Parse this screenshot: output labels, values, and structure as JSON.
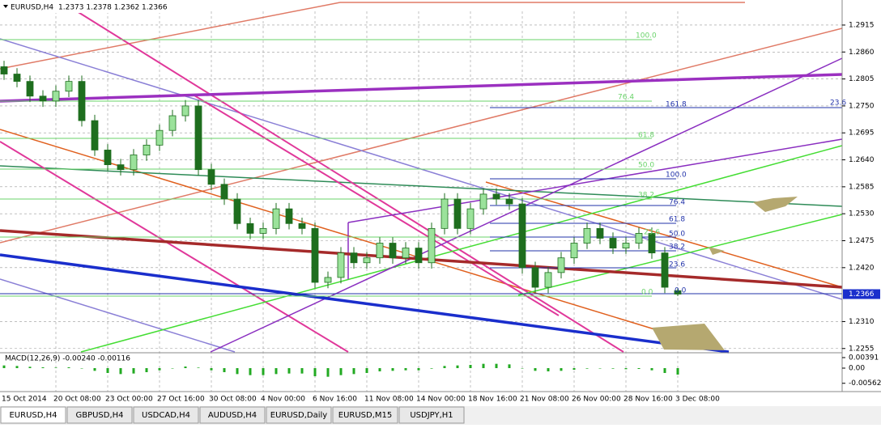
{
  "header": {
    "title": "EURUSD,H4",
    "quote": "1.2373 1.2378 1.2362 1.2366"
  },
  "chart_data": {
    "type": "candlestick",
    "x": [
      "15 Oct 2014",
      null,
      null,
      null,
      "20 Oct 08:00",
      null,
      null,
      null,
      "23 Oct 00:00",
      null,
      null,
      null,
      "27 Oct 16:00",
      null,
      null,
      null,
      "30 Oct 08:00",
      null,
      null,
      null,
      "4 Nov 00:00",
      null,
      null,
      null,
      "6 Nov 16:00",
      null,
      null,
      null,
      "11 Nov 08:00",
      null,
      null,
      null,
      "14 Nov 00:00",
      null,
      null,
      null,
      "18 Nov 16:00",
      null,
      null,
      null,
      "21 Nov 08:00",
      null,
      null,
      null,
      "26 Nov 00:00",
      null,
      null,
      null,
      "28 Nov 16:00",
      null,
      null,
      null,
      "3 Dec 08:00"
    ],
    "open": [
      1.283,
      1.2815,
      1.28,
      1.277,
      1.276,
      1.278,
      1.28,
      1.272,
      1.266,
      1.263,
      1.262,
      1.265,
      1.267,
      1.27,
      1.273,
      1.275,
      1.262,
      1.259,
      1.256,
      1.251,
      1.249,
      1.25,
      1.254,
      1.251,
      1.25,
      1.239,
      1.24,
      1.245,
      1.243,
      1.244,
      1.247,
      1.244,
      1.246,
      1.243,
      1.25,
      1.256,
      1.25,
      1.254,
      1.257,
      1.256,
      1.255,
      1.242,
      1.238,
      1.241,
      1.244,
      1.247,
      1.25,
      1.248,
      1.246,
      1.247,
      1.249,
      1.245,
      1.2373
    ],
    "high": [
      1.2842,
      1.2827,
      1.2812,
      1.2782,
      1.2792,
      1.2812,
      1.2812,
      1.2732,
      1.2672,
      1.2642,
      1.2662,
      1.2682,
      1.2712,
      1.2742,
      1.2762,
      1.2762,
      1.2632,
      1.2602,
      1.2572,
      1.2522,
      1.2512,
      1.2552,
      1.2552,
      1.2522,
      1.2512,
      1.2412,
      1.2462,
      1.2462,
      1.2452,
      1.2482,
      1.2482,
      1.2472,
      1.2472,
      1.2512,
      1.2572,
      1.2572,
      1.2552,
      1.2582,
      1.2582,
      1.2572,
      1.2562,
      1.2432,
      1.2422,
      1.2452,
      1.2482,
      1.2512,
      1.2512,
      1.2492,
      1.2482,
      1.2502,
      1.2502,
      1.2462,
      1.2378
    ],
    "low": [
      1.2803,
      1.2788,
      1.2758,
      1.2748,
      1.2748,
      1.2768,
      1.2708,
      1.2648,
      1.2618,
      1.2608,
      1.2608,
      1.2638,
      1.2658,
      1.2688,
      1.2718,
      1.2608,
      1.2578,
      1.2548,
      1.2498,
      1.2478,
      1.2478,
      1.2488,
      1.2498,
      1.2488,
      1.2378,
      1.2378,
      1.2388,
      1.2418,
      1.2418,
      1.2428,
      1.2428,
      1.2428,
      1.2418,
      1.2418,
      1.2488,
      1.2488,
      1.2488,
      1.2528,
      1.2548,
      1.2538,
      1.2408,
      1.2368,
      1.2368,
      1.2398,
      1.2428,
      1.2458,
      1.2468,
      1.2448,
      1.2448,
      1.2458,
      1.2438,
      1.2368,
      1.2362
    ],
    "close": [
      1.2815,
      1.28,
      1.277,
      1.276,
      1.278,
      1.28,
      1.272,
      1.266,
      1.263,
      1.262,
      1.265,
      1.267,
      1.27,
      1.273,
      1.275,
      1.262,
      1.259,
      1.256,
      1.251,
      1.249,
      1.25,
      1.254,
      1.251,
      1.25,
      1.239,
      1.24,
      1.245,
      1.243,
      1.244,
      1.247,
      1.244,
      1.246,
      1.243,
      1.25,
      1.256,
      1.25,
      1.254,
      1.257,
      1.256,
      1.255,
      1.242,
      1.238,
      1.241,
      1.244,
      1.247,
      1.25,
      1.248,
      1.246,
      1.247,
      1.249,
      1.245,
      1.238,
      1.2366
    ],
    "up_color": "#9be29b",
    "down_color": "#1e6e1e",
    "wick_color": "#1e6e1e",
    "ylim": [
      1.2248,
      1.2943
    ],
    "yticks": [
      1.2915,
      {
        "value": 1.286,
        "label": "1.2860"
      },
      1.2805,
      {
        "value": 1.275,
        "label": "1.2750"
      },
      1.2695,
      {
        "value": 1.264,
        "label": "1.2640"
      },
      1.2585,
      {
        "value": 1.253,
        "label": "1.2530"
      },
      1.2475,
      {
        "value": 1.242,
        "label": "1.2420"
      },
      {
        "value": 1.231,
        "label": "1.2310"
      },
      1.2255
    ],
    "current_price": 1.2366,
    "grid": true,
    "fib_green": [
      "100.0",
      "76.4",
      "61.8",
      "50.0",
      "38.2",
      "23.6",
      "0.0"
    ],
    "fib_blue": [
      "161.8",
      "100.0",
      "76.4",
      "61.8",
      "50.0",
      "38.2",
      "23.6",
      "0.0"
    ],
    "fib_right": "23.6",
    "macd": {
      "title": "MACD(12,26,9) -0.00240 -0.00116",
      "color": "#22aa22",
      "values": [
        0.001,
        0.0008,
        0.0005,
        0.0003,
        0.0002,
        0.0003,
        0.0,
        -0.001,
        -0.0018,
        -0.0022,
        -0.002,
        -0.0015,
        -0.0008,
        0.0,
        0.0006,
        0.0002,
        -0.0008,
        -0.0015,
        -0.0022,
        -0.0026,
        -0.0026,
        -0.0022,
        -0.002,
        -0.002,
        -0.003,
        -0.0032,
        -0.0026,
        -0.0022,
        -0.0018,
        -0.0012,
        -0.001,
        -0.0008,
        -0.0008,
        -0.0002,
        0.0008,
        0.001,
        0.0012,
        0.0016,
        0.0016,
        0.0014,
        0.0,
        -0.001,
        -0.0012,
        -0.001,
        -0.0006,
        -0.0002,
        0.0,
        -0.0002,
        -0.0004,
        -0.0003,
        -0.0008,
        -0.0018,
        -0.0024
      ],
      "ylim": [
        -0.0087,
        0.0054
      ],
      "yticks": [
        0.00391,
        {
          "value": 0,
          "label": "0.00"
        },
        -0.00562
      ]
    }
  },
  "tabs": [
    "EURUSD,H4",
    "GBPUSD,H4",
    "USDCAD,H4",
    "AUDUSD,H4",
    "EURUSD,Daily",
    "EURUSD,M15",
    "USDJPY,H1"
  ]
}
